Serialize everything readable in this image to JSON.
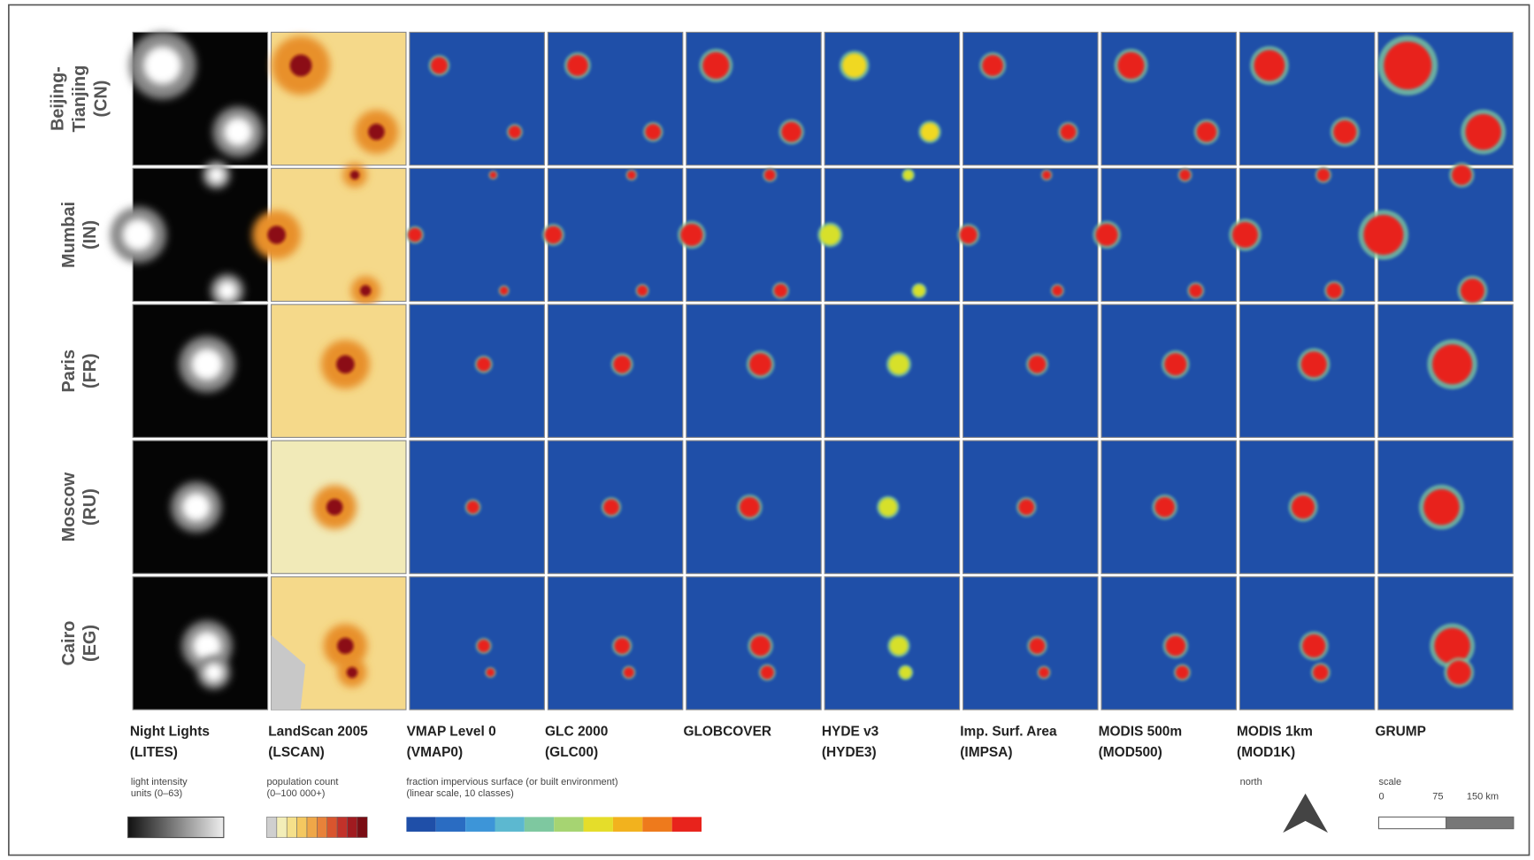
{
  "rows": [
    {
      "lines": [
        "Beijing-",
        "Tianjing",
        "(CN)"
      ]
    },
    {
      "lines": [
        "Mumbai",
        "(IN)"
      ]
    },
    {
      "lines": [
        "Paris",
        "(FR)"
      ]
    },
    {
      "lines": [
        "Moscow",
        "(RU)"
      ]
    },
    {
      "lines": [
        "Cairo",
        "(EG)"
      ]
    }
  ],
  "columns": [
    {
      "lines": [
        "Night Lights",
        "(LITES)"
      ]
    },
    {
      "lines": [
        "LandScan 2005",
        "(LSCAN)"
      ]
    },
    {
      "lines": [
        "VMAP Level 0",
        "(VMAP0)"
      ]
    },
    {
      "lines": [
        "GLC 2000",
        "(GLC00)"
      ]
    },
    {
      "lines": [
        "GLOBCOVER"
      ]
    },
    {
      "lines": [
        "HYDE v3",
        "(HYDE3)"
      ]
    },
    {
      "lines": [
        "Imp. Surf. Area",
        "(IMPSA)"
      ]
    },
    {
      "lines": [
        "MODIS 500m",
        "(MOD500)"
      ]
    },
    {
      "lines": [
        "MODIS 1km",
        "(MOD1K)"
      ]
    },
    {
      "lines": [
        "GRUMP"
      ]
    }
  ],
  "legend": {
    "lights": [
      "light intensity",
      "units (0–63)"
    ],
    "population": [
      "population count",
      "(0–100 000+)"
    ],
    "impervious": [
      "fraction impervious surface (or built environment)",
      "(linear scale, 10 classes)"
    ],
    "north": "north",
    "scale": {
      "title": "scale",
      "ticks": [
        "0",
        "75",
        "150 km"
      ]
    }
  }
}
